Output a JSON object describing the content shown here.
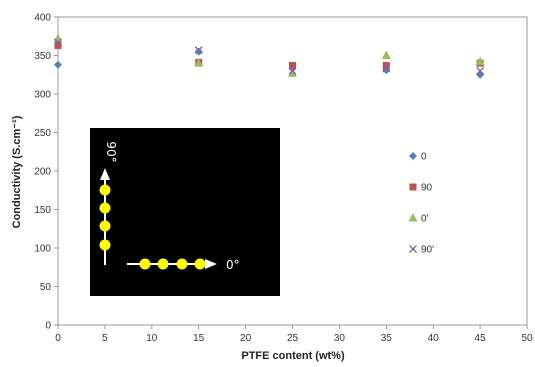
{
  "chart_data": {
    "type": "scatter",
    "xlabel": "PTFE content (wt%)",
    "ylabel": "Conductivity (S.cm⁻¹)",
    "xlim": [
      0,
      50
    ],
    "ylim": [
      0,
      400
    ],
    "xticks": [
      0,
      5,
      10,
      15,
      20,
      25,
      30,
      35,
      40,
      45,
      50
    ],
    "yticks": [
      0,
      50,
      100,
      150,
      200,
      250,
      300,
      350,
      400
    ],
    "grid": false,
    "legend_position": "right",
    "series": [
      {
        "name": "0",
        "marker": "diamond",
        "color": "#4f81bd",
        "x": [
          0,
          15,
          25,
          35,
          45
        ],
        "y": [
          338,
          355,
          333,
          331,
          325
        ]
      },
      {
        "name": "90",
        "marker": "square",
        "color": "#c0504d",
        "x": [
          0,
          15,
          25,
          35,
          45
        ],
        "y": [
          363,
          341,
          337,
          337,
          340
        ]
      },
      {
        "name": "0'",
        "marker": "triangle",
        "color": "#9bbb59",
        "x": [
          0,
          15,
          25,
          35,
          45
        ],
        "y": [
          372,
          340,
          327,
          350,
          342
        ]
      },
      {
        "name": "90'",
        "marker": "x",
        "color": "#8064a2",
        "x": [
          0,
          15,
          25,
          35,
          45
        ],
        "y": [
          367,
          357,
          330,
          333,
          330
        ]
      }
    ],
    "inset": {
      "background": "#000000",
      "dot_color": "#ffff00",
      "arrow_color": "#ffffff",
      "label_vertical": "90°",
      "label_horizontal": "0°"
    }
  }
}
